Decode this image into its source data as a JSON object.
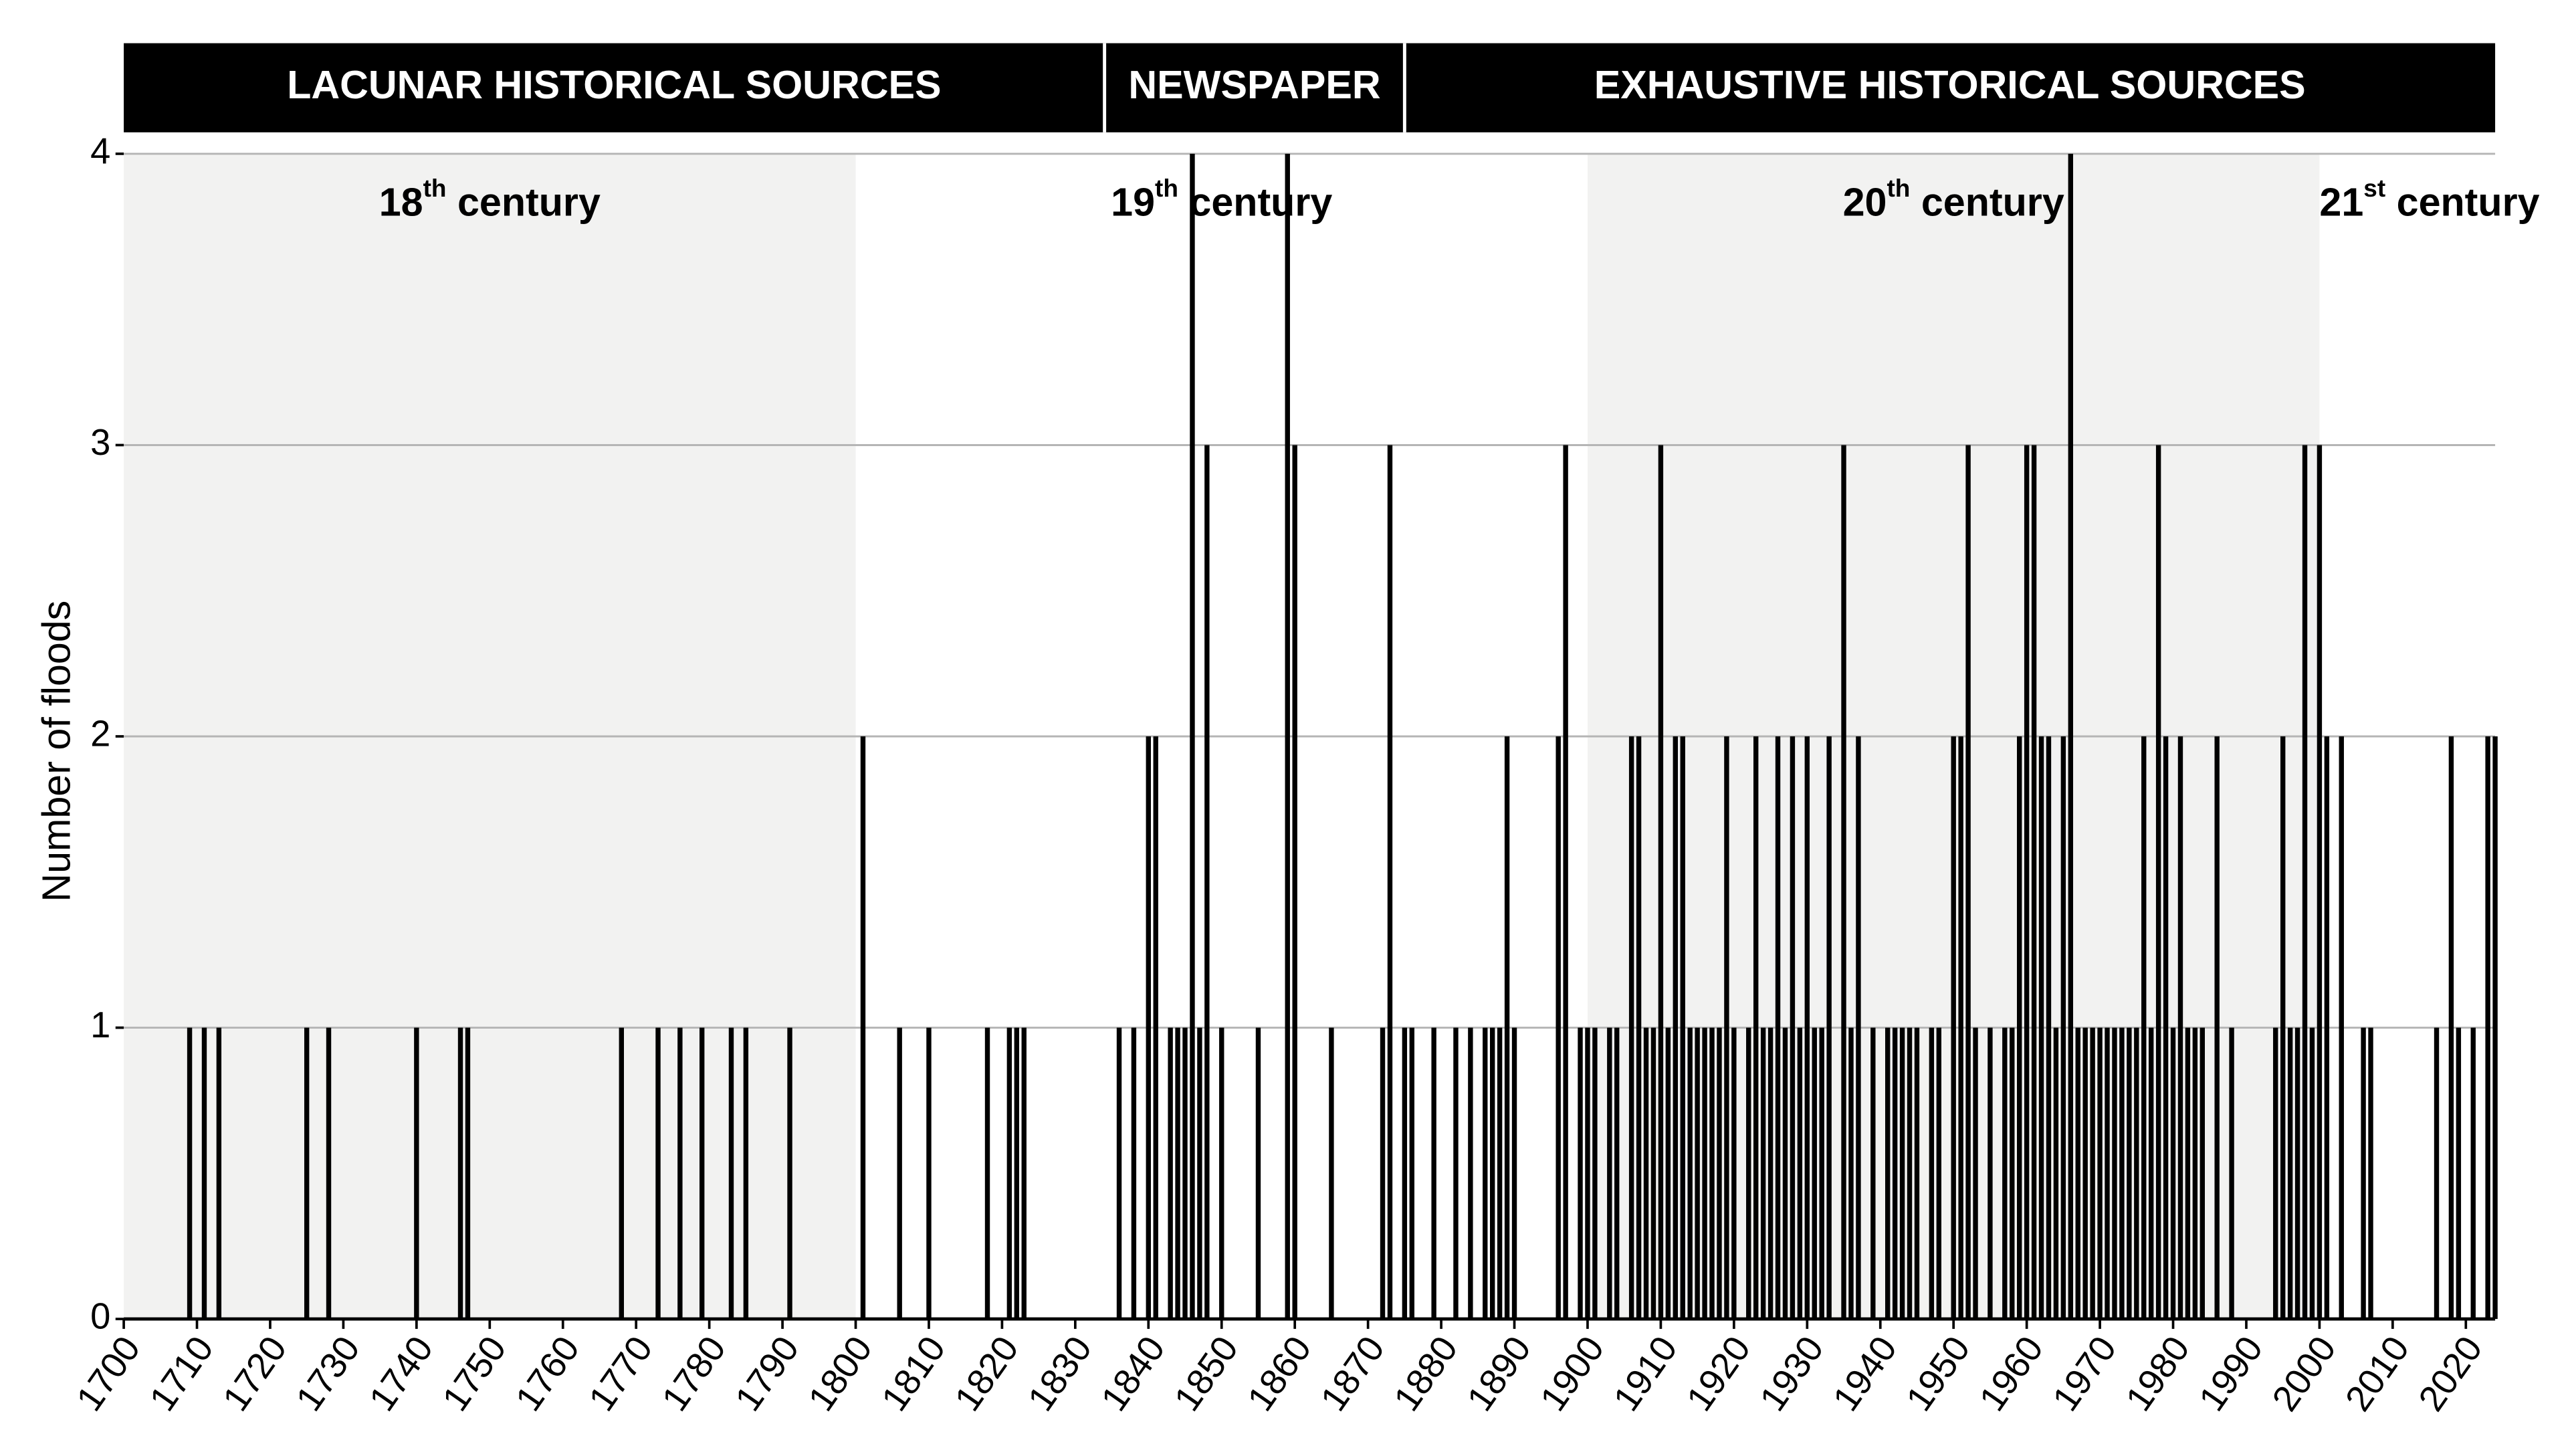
{
  "chart_data": {
    "type": "bar",
    "y_label": "Number of floods",
    "color": "#000000",
    "band_color": "#f2f2f1",
    "xlim": [
      1700,
      2024
    ],
    "xticks": [
      1700,
      1710,
      1720,
      1730,
      1740,
      1750,
      1760,
      1770,
      1780,
      1790,
      1800,
      1810,
      1820,
      1830,
      1840,
      1850,
      1860,
      1870,
      1880,
      1890,
      1900,
      1910,
      1920,
      1930,
      1940,
      1950,
      1960,
      1970,
      1980,
      1990,
      2000,
      2010,
      2020
    ],
    "ylim": [
      0,
      4
    ],
    "yticks": [
      0,
      1,
      2,
      3,
      4
    ],
    "grid": true,
    "bands": [
      {
        "from": 1700,
        "to": 1800
      },
      {
        "from": 1900,
        "to": 2000
      }
    ],
    "centuries": [
      {
        "label": "18th century",
        "start": 1700
      },
      {
        "label": "19th century",
        "start": 1800
      },
      {
        "label": "20th century",
        "start": 1900
      },
      {
        "label": "21st century",
        "start": 2000
      }
    ],
    "sources": [
      {
        "label": "LACUNAR HISTORICAL SOURCES",
        "from": 1700,
        "to": 1834
      },
      {
        "label": "NEWSPAPER",
        "from": 1834,
        "to": 1875
      },
      {
        "label": "EXHAUSTIVE HISTORICAL SOURCES",
        "from": 1875,
        "to": 2024
      }
    ],
    "x": [
      1709,
      1711,
      1713,
      1725,
      1728,
      1740,
      1746,
      1747,
      1768,
      1773,
      1776,
      1779,
      1783,
      1785,
      1791,
      1801,
      1806,
      1810,
      1818,
      1821,
      1822,
      1823,
      1836,
      1838,
      1840,
      1841,
      1843,
      1844,
      1845,
      1846,
      1847,
      1848,
      1850,
      1855,
      1859,
      1860,
      1865,
      1872,
      1873,
      1875,
      1876,
      1879,
      1882,
      1884,
      1886,
      1887,
      1888,
      1889,
      1890,
      1896,
      1897,
      1899,
      1900,
      1901,
      1903,
      1904,
      1906,
      1907,
      1908,
      1909,
      1910,
      1911,
      1912,
      1913,
      1914,
      1915,
      1916,
      1917,
      1918,
      1919,
      1920,
      1922,
      1923,
      1924,
      1925,
      1926,
      1927,
      1928,
      1929,
      1930,
      1931,
      1932,
      1933,
      1935,
      1936,
      1937,
      1939,
      1941,
      1942,
      1943,
      1944,
      1945,
      1947,
      1948,
      1950,
      1951,
      1952,
      1953,
      1955,
      1957,
      1958,
      1959,
      1960,
      1961,
      1962,
      1963,
      1964,
      1965,
      1966,
      1967,
      1968,
      1969,
      1970,
      1971,
      1972,
      1973,
      1974,
      1975,
      1976,
      1977,
      1978,
      1979,
      1980,
      1981,
      1982,
      1983,
      1984,
      1986,
      1988,
      1994,
      1995,
      1996,
      1997,
      1998,
      1999,
      2000,
      2001,
      2003,
      2006,
      2007,
      2016,
      2018,
      2019,
      2021,
      2023,
      2024
    ],
    "values": [
      1,
      1,
      1,
      1,
      1,
      1,
      1,
      1,
      1,
      1,
      1,
      1,
      1,
      1,
      1,
      2,
      1,
      1,
      1,
      1,
      1,
      1,
      1,
      1,
      2,
      2,
      1,
      1,
      1,
      4,
      1,
      3,
      1,
      1,
      4,
      3,
      1,
      1,
      3,
      1,
      1,
      1,
      1,
      1,
      1,
      1,
      1,
      2,
      1,
      2,
      3,
      1,
      1,
      1,
      1,
      1,
      2,
      2,
      1,
      1,
      3,
      1,
      2,
      2,
      1,
      1,
      1,
      1,
      1,
      2,
      1,
      1,
      2,
      1,
      1,
      2,
      1,
      2,
      1,
      2,
      1,
      1,
      2,
      3,
      1,
      2,
      1,
      1,
      1,
      1,
      1,
      1,
      1,
      1,
      2,
      2,
      3,
      1,
      1,
      1,
      1,
      2,
      3,
      3,
      2,
      2,
      1,
      2,
      4,
      1,
      1,
      1,
      1,
      1,
      1,
      1,
      1,
      1,
      2,
      1,
      3,
      2,
      1,
      2,
      1,
      1,
      1,
      2,
      1,
      1,
      2,
      1,
      1,
      3,
      1,
      3,
      2,
      2,
      1,
      1,
      1,
      2,
      1,
      1,
      2,
      2
    ]
  }
}
